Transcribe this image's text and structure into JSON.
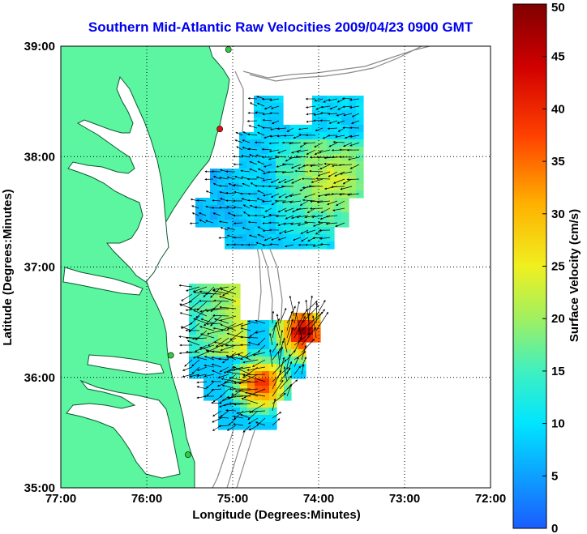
{
  "chart_data": {
    "type": "heatmap",
    "title": "Southern Mid-Atlantic Raw Velocities 2009/04/23 0900 GMT",
    "xlabel": "Longitude (Degrees:Minutes)",
    "ylabel": "Latitude (Degrees:Minutes)",
    "xlim": [
      -77,
      -72
    ],
    "ylim": [
      35,
      39
    ],
    "xticks": [
      {
        "value": -77,
        "label": "77:00"
      },
      {
        "value": -76,
        "label": "76:00"
      },
      {
        "value": -75,
        "label": "75:00"
      },
      {
        "value": -74,
        "label": "74:00"
      },
      {
        "value": -73,
        "label": "73:00"
      },
      {
        "value": -72,
        "label": "72:00"
      }
    ],
    "yticks": [
      {
        "value": 35,
        "label": "35:00"
      },
      {
        "value": 36,
        "label": "36:00"
      },
      {
        "value": 37,
        "label": "37:00"
      },
      {
        "value": 38,
        "label": "38:00"
      },
      {
        "value": 39,
        "label": "39:00"
      }
    ],
    "grid": "dotted",
    "colorbar": {
      "label": "Surface Velocity (cm/s)",
      "range": [
        0,
        50
      ],
      "ticks": [
        0,
        5,
        10,
        15,
        20,
        25,
        30,
        35,
        40,
        45,
        50
      ]
    },
    "stations": [
      {
        "lon": -75.05,
        "lat": 38.97,
        "color": "#2ecc40"
      },
      {
        "lon": -75.15,
        "lat": 38.25,
        "color": "#e01010"
      },
      {
        "lon": -75.72,
        "lat": 36.2,
        "color": "#2ecc40"
      },
      {
        "lon": -75.52,
        "lat": 35.3,
        "color": "#2ecc40"
      }
    ],
    "colors": {
      "land": "#5cf5a0",
      "title": "#0000ee",
      "isobath": "#8a8a8a"
    }
  }
}
